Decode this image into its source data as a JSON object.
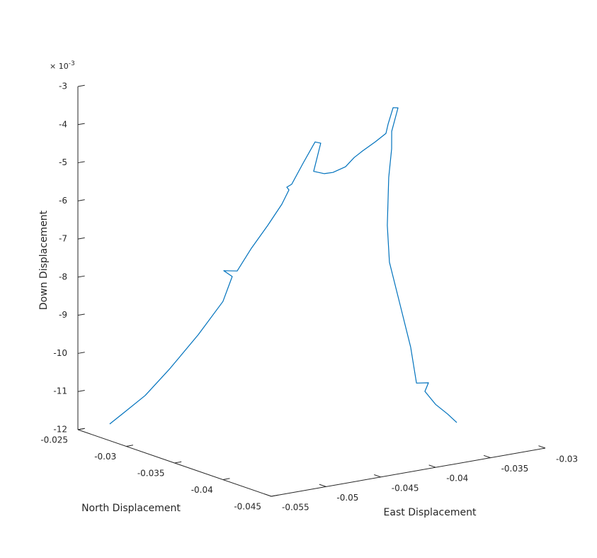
{
  "chart_data": {
    "type": "line3d",
    "xlabel": "East Displacement",
    "ylabel": "North Displacement",
    "zlabel": "Down Displacement",
    "z_exponent": {
      "base": "× 10",
      "power": "-3"
    },
    "xlim": [
      -0.055,
      -0.03
    ],
    "xticks": [
      -0.055,
      -0.05,
      -0.045,
      -0.04,
      -0.035,
      -0.03
    ],
    "ylim": [
      -0.045,
      -0.025
    ],
    "yticks": [
      -0.045,
      -0.04,
      -0.035,
      -0.03,
      -0.025
    ],
    "zlim": [
      -0.012,
      -0.003
    ],
    "zticks": [
      {
        "value": -0.003,
        "label": "-3"
      },
      {
        "value": -0.004,
        "label": "-4"
      },
      {
        "value": -0.005,
        "label": "-5"
      },
      {
        "value": -0.006,
        "label": "-6"
      },
      {
        "value": -0.007,
        "label": "-7"
      },
      {
        "value": -0.008,
        "label": "-8"
      },
      {
        "value": -0.009,
        "label": "-9"
      },
      {
        "value": -0.01,
        "label": "-10"
      },
      {
        "value": -0.011,
        "label": "-11"
      },
      {
        "value": -0.012,
        "label": "-12"
      }
    ],
    "color": "#0072bd",
    "x": [
      -0.05342,
      -0.05238,
      -0.0507,
      -0.04869,
      -0.04636,
      -0.04436,
      -0.04377,
      -0.0448,
      -0.04383,
      -0.04279,
      -0.04156,
      -0.04052,
      -0.04013,
      -0.04058,
      -0.04038,
      -0.0396,
      -0.03876,
      -0.0385,
      -0.0394,
      -0.03868,
      -0.03816,
      -0.03726,
      -0.03673,
      -0.03622,
      -0.0353,
      -0.03459,
      -0.03465,
      -0.03445,
      -0.03426,
      -0.03509,
      -0.03535,
      -0.03586,
      -0.03625,
      -0.03631,
      -0.03559,
      -0.03488,
      -0.03461,
      -0.03377,
      -0.03435,
      -0.03364,
      -0.03279,
      -0.0322
    ],
    "y": [
      -0.0265,
      -0.02679,
      -0.02708,
      -0.02737,
      -0.02766,
      -0.02794,
      -0.02823,
      -0.02852,
      -0.02881,
      -0.0291,
      -0.02939,
      -0.02968,
      -0.02997,
      -0.03026,
      -0.03054,
      -0.03083,
      -0.03112,
      -0.03141,
      -0.0317,
      -0.03199,
      -0.03228,
      -0.03257,
      -0.03286,
      -0.03314,
      -0.03343,
      -0.03372,
      -0.03401,
      -0.0343,
      -0.03459,
      -0.03488,
      -0.03517,
      -0.03545,
      -0.03574,
      -0.03603,
      -0.03632,
      -0.03661,
      -0.0369,
      -0.03719,
      -0.03748,
      -0.03777,
      -0.03805,
      -0.03834
    ],
    "z": [
      -0.0118,
      -0.01153,
      -0.01114,
      -0.01051,
      -0.00971,
      -0.00892,
      -0.00827,
      -0.00804,
      -0.00807,
      -0.0075,
      -0.00694,
      -0.00641,
      -0.00603,
      -0.00591,
      -0.00582,
      -0.00528,
      -0.00474,
      -0.00476,
      -0.00543,
      -0.0055,
      -0.00547,
      -0.00534,
      -0.0051,
      -0.00493,
      -0.00471,
      -0.0045,
      -0.00423,
      -0.00378,
      -0.00377,
      -0.00432,
      -0.00474,
      -0.00544,
      -0.00665,
      -0.00759,
      -0.00872,
      -0.00984,
      -0.01077,
      -0.01078,
      -0.01095,
      -0.0113,
      -0.01157,
      -0.0118
    ]
  }
}
